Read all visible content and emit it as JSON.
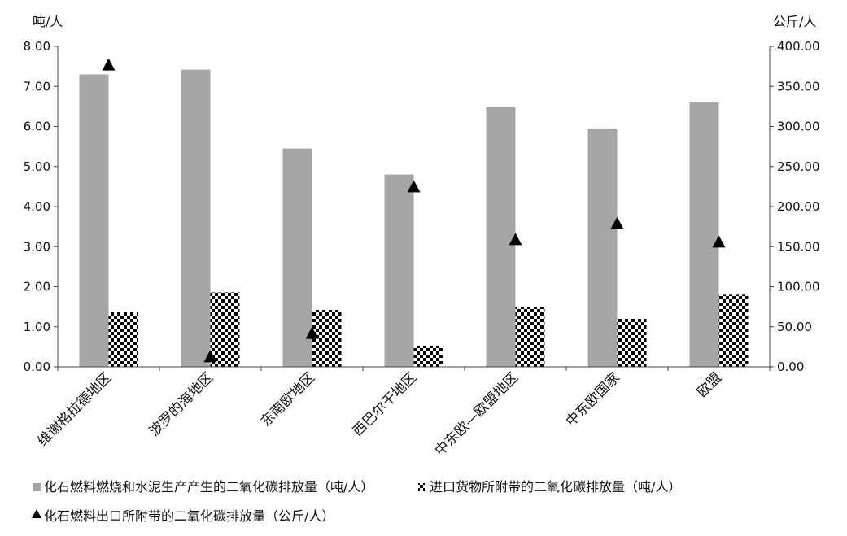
{
  "chart_data": {
    "type": "bar",
    "left_unit": "吨/人",
    "right_unit": "公斤/人",
    "categories": [
      "维谢格拉德地区",
      "波罗的海地区",
      "东南欧地区",
      "西巴尔干地区",
      "中东欧—欧盟地区",
      "中东欧国家",
      "欧盟"
    ],
    "left_ylim": [
      0,
      8
    ],
    "right_ylim": [
      0,
      400
    ],
    "left_ticks": [
      "0.00",
      "1.00",
      "2.00",
      "3.00",
      "4.00",
      "5.00",
      "6.00",
      "7.00",
      "8.00"
    ],
    "right_ticks": [
      "0.00",
      "50.00",
      "100.00",
      "150.00",
      "200.00",
      "250.00",
      "300.00",
      "350.00",
      "400.00"
    ],
    "series": [
      {
        "name": "化石燃料燃烧和水泥生产产生的二氧化碳排放量（吨/人）",
        "axis": "left",
        "style": "solid-gray",
        "color": "#a6a6a6",
        "values": [
          7.3,
          7.42,
          5.45,
          4.8,
          6.48,
          5.95,
          6.6
        ]
      },
      {
        "name": "进口货物所附带的二氧化碳排放量（吨/人）",
        "axis": "left",
        "style": "checker",
        "values": [
          1.37,
          1.86,
          1.42,
          0.53,
          1.49,
          1.2,
          1.8
        ]
      },
      {
        "name": "化石燃料出口所附带的二氧化碳排放量（公斤/人）",
        "axis": "right",
        "style": "triangle",
        "values": [
          377,
          13,
          42,
          225,
          159,
          179,
          156
        ]
      }
    ],
    "grid": false,
    "legend_position": "bottom"
  }
}
